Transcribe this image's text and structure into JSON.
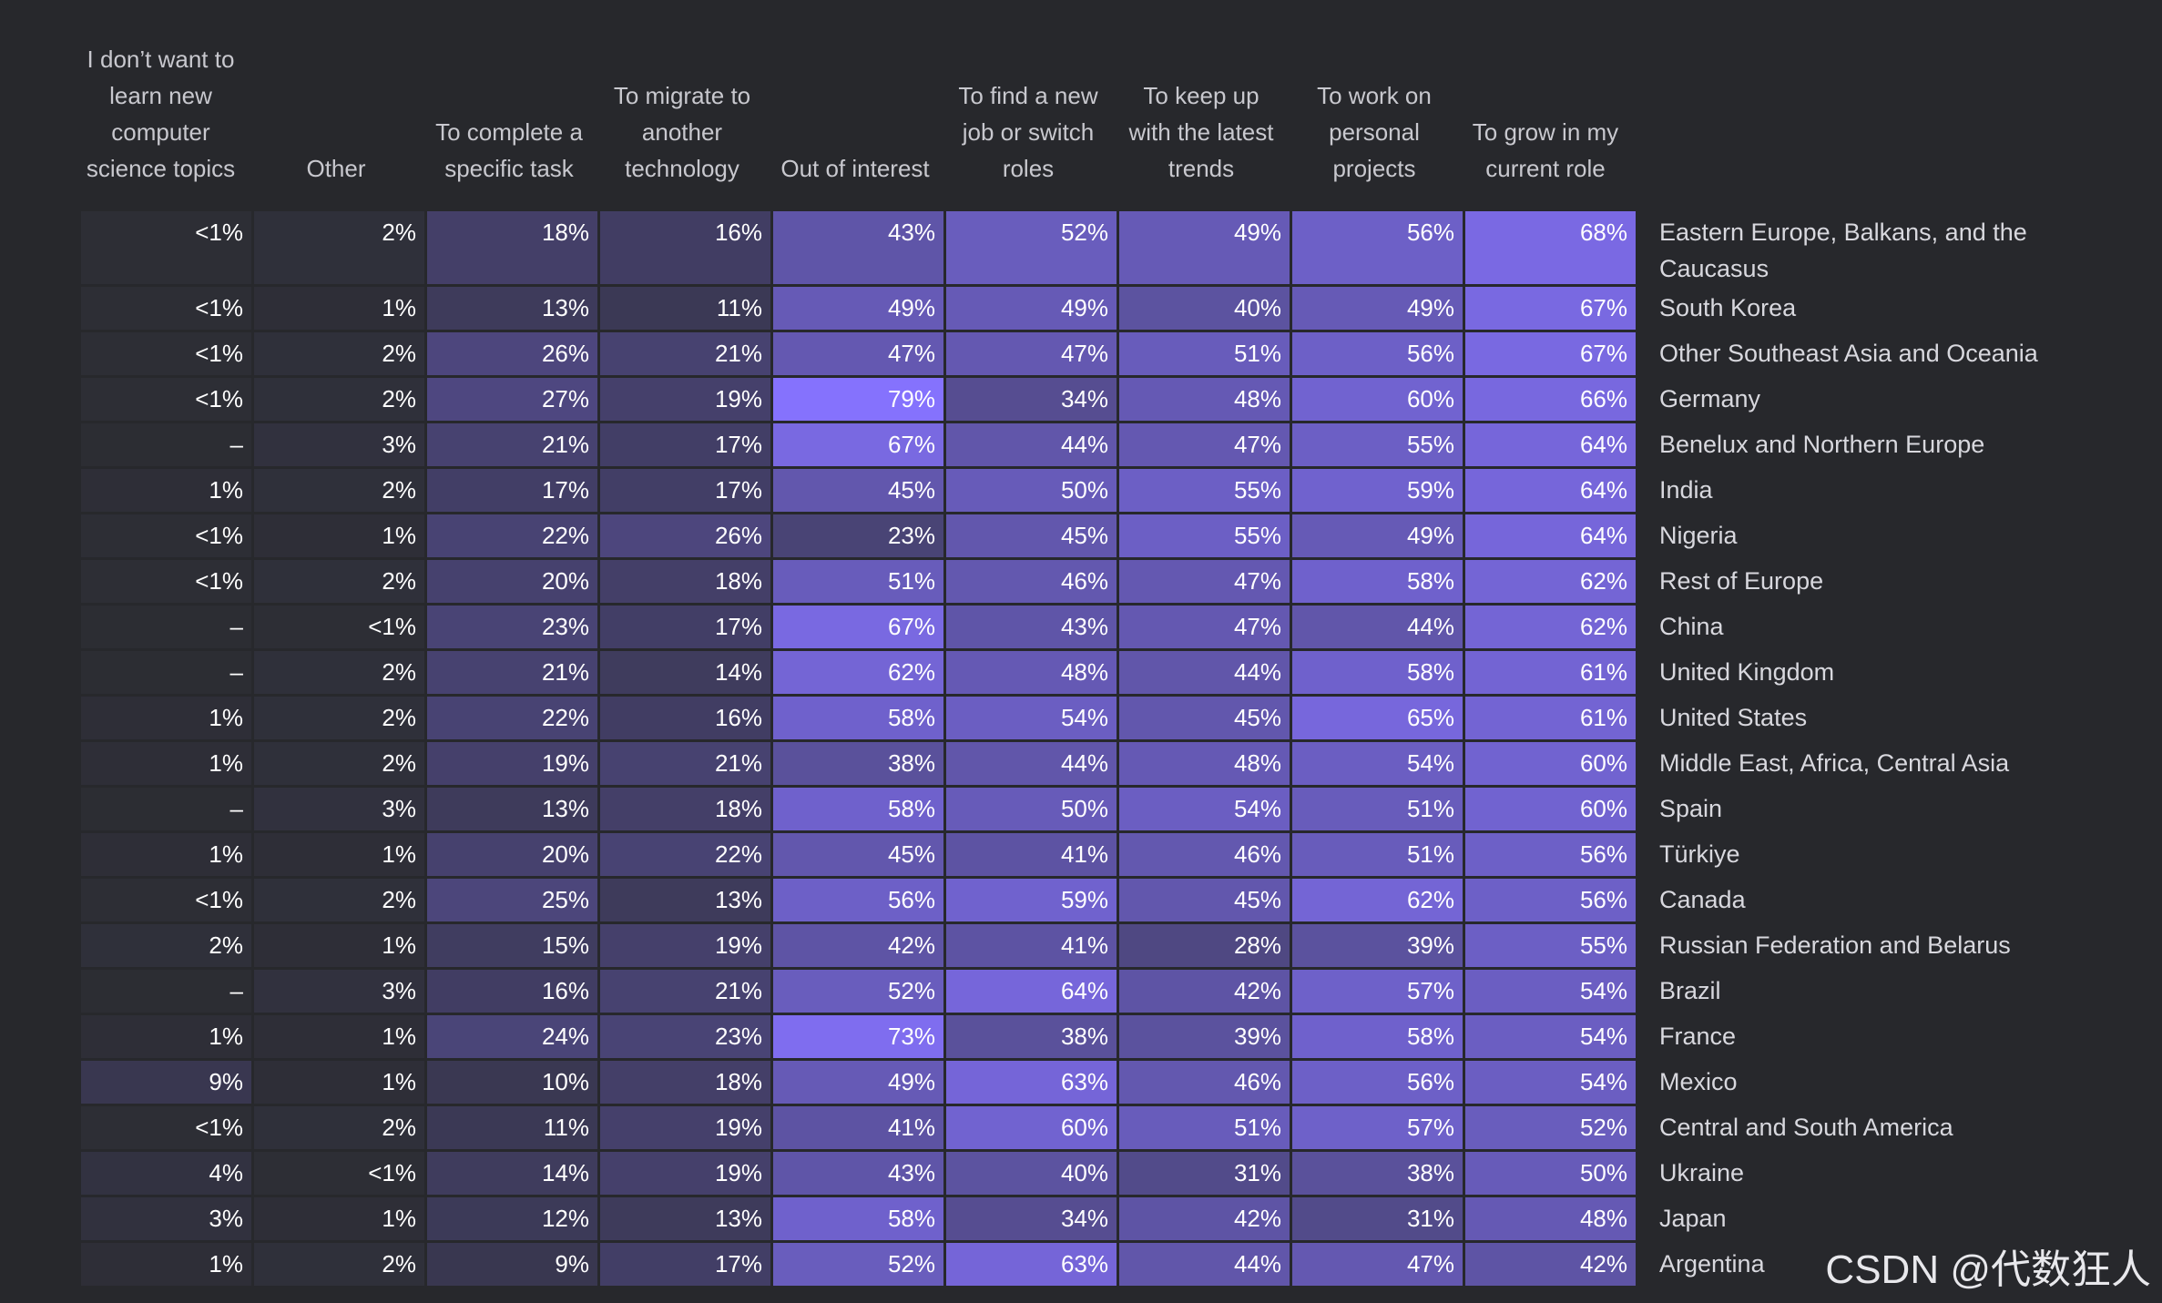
{
  "chart_data": {
    "type": "heatmap",
    "columns": [
      "I don’t want to learn new computer science topics",
      "Other",
      "To complete a specific task",
      "To migrate to another technology",
      "Out of interest",
      "To find a new job or switch roles",
      "To keep up with the latest trends",
      "To work on personal projects",
      "To grow in my current role"
    ],
    "rows": [
      {
        "label": "Eastern Europe, Balkans, and the Caucasus",
        "values": [
          "<1%",
          "2%",
          "18%",
          "16%",
          "43%",
          "52%",
          "49%",
          "56%",
          "68%"
        ]
      },
      {
        "label": "South Korea",
        "values": [
          "<1%",
          "1%",
          "13%",
          "11%",
          "49%",
          "49%",
          "40%",
          "49%",
          "67%"
        ]
      },
      {
        "label": "Other Southeast Asia and Oceania",
        "values": [
          "<1%",
          "2%",
          "26%",
          "21%",
          "47%",
          "47%",
          "51%",
          "56%",
          "67%"
        ]
      },
      {
        "label": "Germany",
        "values": [
          "<1%",
          "2%",
          "27%",
          "19%",
          "79%",
          "34%",
          "48%",
          "60%",
          "66%"
        ]
      },
      {
        "label": "Benelux and Northern Europe",
        "values": [
          "–",
          "3%",
          "21%",
          "17%",
          "67%",
          "44%",
          "47%",
          "55%",
          "64%"
        ]
      },
      {
        "label": "India",
        "values": [
          "1%",
          "2%",
          "17%",
          "17%",
          "45%",
          "50%",
          "55%",
          "59%",
          "64%"
        ]
      },
      {
        "label": "Nigeria",
        "values": [
          "<1%",
          "1%",
          "22%",
          "26%",
          "23%",
          "45%",
          "55%",
          "49%",
          "64%"
        ]
      },
      {
        "label": "Rest of Europe",
        "values": [
          "<1%",
          "2%",
          "20%",
          "18%",
          "51%",
          "46%",
          "47%",
          "58%",
          "62%"
        ]
      },
      {
        "label": "China",
        "values": [
          "–",
          "<1%",
          "23%",
          "17%",
          "67%",
          "43%",
          "47%",
          "44%",
          "62%"
        ]
      },
      {
        "label": "United Kingdom",
        "values": [
          "–",
          "2%",
          "21%",
          "14%",
          "62%",
          "48%",
          "44%",
          "58%",
          "61%"
        ]
      },
      {
        "label": "United States",
        "values": [
          "1%",
          "2%",
          "22%",
          "16%",
          "58%",
          "54%",
          "45%",
          "65%",
          "61%"
        ]
      },
      {
        "label": "Middle East, Africa, Central Asia",
        "values": [
          "1%",
          "2%",
          "19%",
          "21%",
          "38%",
          "44%",
          "48%",
          "54%",
          "60%"
        ]
      },
      {
        "label": "Spain",
        "values": [
          "–",
          "3%",
          "13%",
          "18%",
          "58%",
          "50%",
          "54%",
          "51%",
          "60%"
        ]
      },
      {
        "label": "Türkiye",
        "values": [
          "1%",
          "1%",
          "20%",
          "22%",
          "45%",
          "41%",
          "46%",
          "51%",
          "56%"
        ]
      },
      {
        "label": "Canada",
        "values": [
          "<1%",
          "2%",
          "25%",
          "13%",
          "56%",
          "59%",
          "45%",
          "62%",
          "56%"
        ]
      },
      {
        "label": "Russian Federation and Belarus",
        "values": [
          "2%",
          "1%",
          "15%",
          "19%",
          "42%",
          "41%",
          "28%",
          "39%",
          "55%"
        ]
      },
      {
        "label": "Brazil",
        "values": [
          "–",
          "3%",
          "16%",
          "21%",
          "52%",
          "64%",
          "42%",
          "57%",
          "54%"
        ]
      },
      {
        "label": "France",
        "values": [
          "1%",
          "1%",
          "24%",
          "23%",
          "73%",
          "38%",
          "39%",
          "58%",
          "54%"
        ]
      },
      {
        "label": "Mexico",
        "values": [
          "9%",
          "1%",
          "10%",
          "18%",
          "49%",
          "63%",
          "46%",
          "56%",
          "54%"
        ]
      },
      {
        "label": "Central and South America",
        "values": [
          "<1%",
          "2%",
          "11%",
          "19%",
          "41%",
          "60%",
          "51%",
          "57%",
          "52%"
        ]
      },
      {
        "label": "Ukraine",
        "values": [
          "4%",
          "<1%",
          "14%",
          "19%",
          "43%",
          "40%",
          "31%",
          "38%",
          "50%"
        ]
      },
      {
        "label": "Japan",
        "values": [
          "3%",
          "1%",
          "12%",
          "13%",
          "58%",
          "34%",
          "42%",
          "31%",
          "48%"
        ]
      },
      {
        "label": "Argentina",
        "values": [
          "1%",
          "2%",
          "9%",
          "17%",
          "52%",
          "63%",
          "44%",
          "47%",
          "42%"
        ]
      }
    ],
    "color_scale": {
      "low": "#2c2d33",
      "high": "#8673ff"
    },
    "legend": "none",
    "grid": false
  },
  "watermark": "CSDN @代数狂人"
}
